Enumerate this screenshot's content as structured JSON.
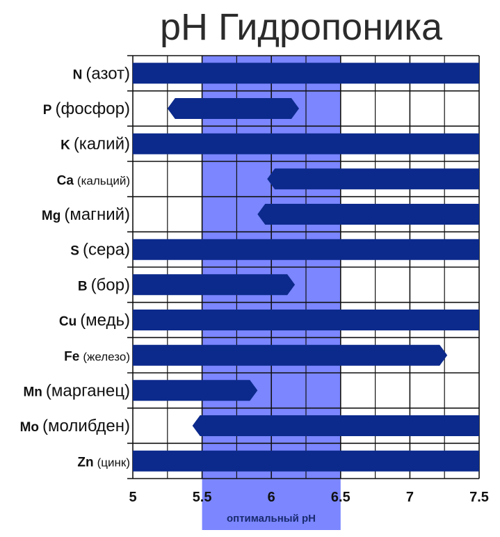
{
  "chart_data": {
    "type": "bar",
    "title": "pH Гидропоника",
    "x_ticks": [
      "5",
      "5.5",
      "6",
      "6.5",
      "7",
      "7.5"
    ],
    "xlim": [
      5,
      7.5
    ],
    "grid": true,
    "highlight": {
      "from": 5.5,
      "to": 6.5,
      "label": "оптимальный pH",
      "color": "#7b86ff"
    },
    "bar_color": "#0c2a8c",
    "grid_color": "#111111",
    "categories": [
      {
        "symbol": "N",
        "name": "(азот)",
        "from": 5.0,
        "to": 7.5,
        "start_arrow": false,
        "end_arrow": false
      },
      {
        "symbol": "P",
        "name": "(фосфор)",
        "from": 5.25,
        "to": 6.2,
        "start_arrow": true,
        "end_arrow": true
      },
      {
        "symbol": "K",
        "name": "(калий)",
        "from": 5.0,
        "to": 7.5,
        "start_arrow": false,
        "end_arrow": false
      },
      {
        "symbol": "Ca",
        "name": "(кальций)",
        "from": 5.97,
        "to": 7.5,
        "start_arrow": true,
        "end_arrow": false
      },
      {
        "symbol": "Mg",
        "name": "(магний)",
        "from": 5.9,
        "to": 7.5,
        "start_arrow": true,
        "end_arrow": false
      },
      {
        "symbol": "S",
        "name": "(сера)",
        "from": 5.0,
        "to": 7.5,
        "start_arrow": false,
        "end_arrow": false
      },
      {
        "symbol": "B",
        "name": "(бор)",
        "from": 5.0,
        "to": 6.17,
        "start_arrow": false,
        "end_arrow": true
      },
      {
        "symbol": "Cu",
        "name": "(медь)",
        "from": 5.0,
        "to": 7.5,
        "start_arrow": false,
        "end_arrow": false
      },
      {
        "symbol": "Fe",
        "name": "(железо)",
        "from": 5.0,
        "to": 7.27,
        "start_arrow": false,
        "end_arrow": true
      },
      {
        "symbol": "Mn",
        "name": "(марганец)",
        "from": 5.0,
        "to": 5.9,
        "start_arrow": false,
        "end_arrow": true
      },
      {
        "symbol": "Mo",
        "name": "(молибден)",
        "from": 5.43,
        "to": 7.5,
        "start_arrow": true,
        "end_arrow": false
      },
      {
        "symbol": "Zn",
        "name": "(цинк)",
        "from": 5.0,
        "to": 7.5,
        "start_arrow": false,
        "end_arrow": false
      }
    ]
  }
}
